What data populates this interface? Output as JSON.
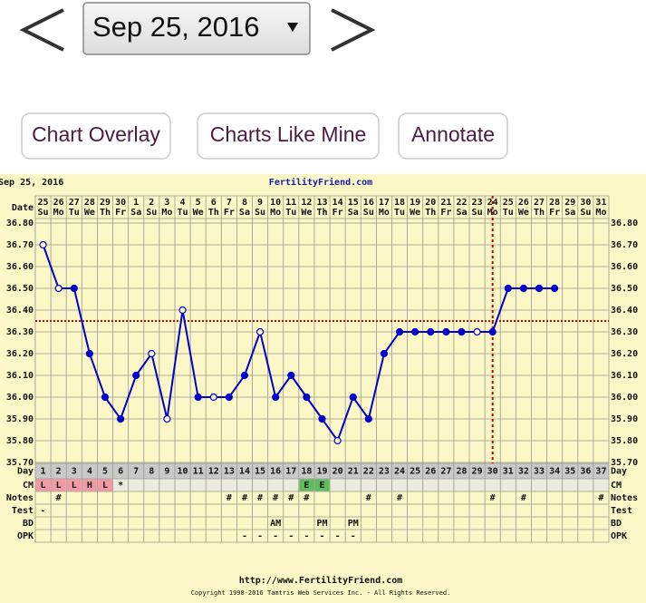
{
  "nav": {
    "date_select": "Sep 25, 2016"
  },
  "buttons": [
    "Chart Overlay",
    "Charts Like Mine",
    "Annotate"
  ],
  "chart_data": {
    "type": "line",
    "date_label": "Sep 25, 2016",
    "title": "FertilityFriend.com",
    "date_row_label": "Date",
    "dates": [
      "25",
      "26",
      "27",
      "28",
      "29",
      "30",
      "1",
      "2",
      "3",
      "4",
      "5",
      "6",
      "7",
      "8",
      "9",
      "10",
      "11",
      "12",
      "13",
      "14",
      "15",
      "16",
      "17",
      "18",
      "19",
      "20",
      "21",
      "22",
      "23",
      "24",
      "25",
      "26",
      "27",
      "28",
      "29",
      "30",
      "31"
    ],
    "weekdays": [
      "Su",
      "Mo",
      "Tu",
      "We",
      "Th",
      "Fr",
      "Sa",
      "Su",
      "Mo",
      "Tu",
      "We",
      "Th",
      "Fr",
      "Sa",
      "Su",
      "Mo",
      "Tu",
      "We",
      "Th",
      "Fr",
      "Sa",
      "Su",
      "Mo",
      "Tu",
      "We",
      "Th",
      "Fr",
      "Sa",
      "Su",
      "Mo",
      "Tu",
      "We",
      "Th",
      "Fr",
      "Sa",
      "Su",
      "Mo"
    ],
    "day_row_label": "Day",
    "categories": [
      "1",
      "2",
      "3",
      "4",
      "5",
      "6",
      "7",
      "8",
      "9",
      "10",
      "11",
      "12",
      "13",
      "14",
      "15",
      "16",
      "17",
      "18",
      "19",
      "20",
      "21",
      "22",
      "23",
      "24",
      "25",
      "26",
      "27",
      "28",
      "29",
      "30",
      "31",
      "32",
      "33",
      "34",
      "35",
      "36",
      "37"
    ],
    "values": [
      36.7,
      36.5,
      36.5,
      36.2,
      36.0,
      35.9,
      36.1,
      36.2,
      35.9,
      36.4,
      36.0,
      36.0,
      36.0,
      36.1,
      36.3,
      36.0,
      36.1,
      36.0,
      35.9,
      35.8,
      36.0,
      35.9,
      36.2,
      36.3,
      36.3,
      36.3,
      36.3,
      36.3,
      36.3,
      36.3,
      36.5,
      36.5,
      36.5,
      36.5,
      null,
      null,
      null
    ],
    "marker_fill": [
      "open",
      "open",
      "solid",
      "solid",
      "solid",
      "solid",
      "solid",
      "open",
      "open",
      "open",
      "solid",
      "open",
      "solid",
      "solid",
      "open",
      "solid",
      "solid",
      "solid",
      "solid",
      "open",
      "solid",
      "solid",
      "solid",
      "solid",
      "solid",
      "solid",
      "solid",
      "solid",
      "open",
      "solid",
      "solid",
      "solid",
      "solid",
      "solid",
      null,
      null,
      null
    ],
    "color": "#0000cc",
    "ylim": [
      35.7,
      36.8
    ],
    "yticks": [
      {
        "value": 35.7,
        "label": "35.70"
      },
      {
        "value": 35.8,
        "label": "35.80"
      },
      {
        "value": 35.9,
        "label": "35.90"
      },
      {
        "value": 36.0,
        "label": "36.00"
      },
      {
        "value": 36.1,
        "label": "36.10"
      },
      {
        "value": 36.2,
        "label": "36.20"
      },
      {
        "value": 36.3,
        "label": "36.30"
      },
      {
        "value": 36.4,
        "label": "36.40"
      },
      {
        "value": 36.5,
        "label": "36.50"
      },
      {
        "value": 36.6,
        "label": "36.60"
      },
      {
        "value": 36.7,
        "label": "36.70"
      },
      {
        "value": 36.8,
        "label": "36.80"
      }
    ],
    "grid": true,
    "coverline": 36.35,
    "coverline_color": "#cc0000",
    "ovulation_day": "30",
    "rows": [
      {
        "label": "CM",
        "cells": [
          "L",
          "L",
          "L",
          "H",
          "L",
          "*",
          null,
          null,
          null,
          null,
          null,
          null,
          null,
          null,
          null,
          null,
          null,
          "E",
          "E",
          null,
          null,
          null,
          null,
          null,
          null,
          null,
          null,
          null,
          null,
          null,
          null,
          null,
          null,
          null,
          null,
          null,
          null
        ],
        "cell_colors": [
          "#f29aa6",
          "#f29aa6",
          "#f29aa6",
          "#f29aa6",
          "#f29aa6",
          null,
          null,
          null,
          null,
          null,
          null,
          null,
          null,
          null,
          null,
          null,
          null,
          "#5dbd5d",
          "#5dbd5d",
          null,
          null,
          null,
          null,
          null,
          null,
          null,
          null,
          null,
          null,
          null,
          null,
          null,
          null,
          null,
          null,
          null,
          null
        ]
      },
      {
        "label": "Notes",
        "cells": [
          null,
          "#",
          null,
          null,
          null,
          null,
          null,
          null,
          null,
          null,
          null,
          null,
          "#",
          "#",
          "#",
          "#",
          "#",
          "#",
          null,
          null,
          null,
          "#",
          null,
          "#",
          null,
          null,
          null,
          null,
          null,
          "#",
          null,
          "#",
          null,
          null,
          null,
          null,
          "#"
        ]
      },
      {
        "label": "Test",
        "cells": [
          "-",
          null,
          null,
          null,
          null,
          null,
          null,
          null,
          null,
          null,
          null,
          null,
          null,
          null,
          null,
          null,
          null,
          null,
          null,
          null,
          null,
          null,
          null,
          null,
          null,
          null,
          null,
          null,
          null,
          null,
          null,
          null,
          null,
          null,
          null,
          null,
          null
        ]
      },
      {
        "label": "BD",
        "cells": [
          null,
          null,
          null,
          null,
          null,
          null,
          null,
          null,
          null,
          null,
          null,
          null,
          null,
          null,
          null,
          "AM",
          null,
          null,
          "PM",
          null,
          "PM",
          null,
          null,
          null,
          null,
          null,
          null,
          null,
          null,
          null,
          null,
          null,
          null,
          null,
          null,
          null,
          null
        ]
      },
      {
        "label": "OPK",
        "cells": [
          null,
          null,
          null,
          null,
          null,
          null,
          null,
          null,
          null,
          null,
          null,
          null,
          null,
          "-",
          "-",
          "-",
          "-",
          "-",
          "-",
          "-",
          "-",
          null,
          null,
          null,
          null,
          null,
          null,
          null,
          null,
          null,
          null,
          null,
          null,
          null,
          null,
          null,
          null
        ]
      }
    ],
    "footer_url": "http://www.FertilityFriend.com",
    "copyright": "Copyright 1998-2016 Tamtris Web Services Inc. - All Rights Reserved."
  }
}
